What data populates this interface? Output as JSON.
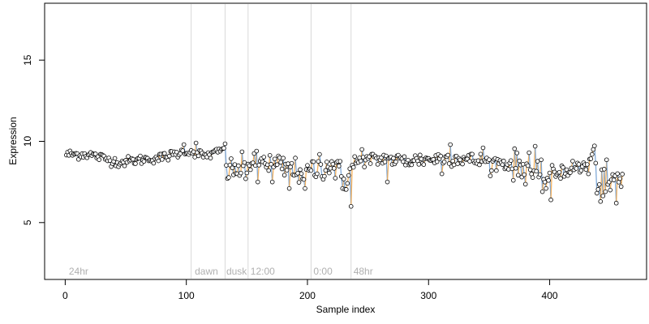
{
  "chart_data": {
    "type": "scatter",
    "title": "",
    "xlabel": "Sample index",
    "ylabel": "Expression",
    "xlim": [
      -17,
      480
    ],
    "ylim": [
      1.5,
      18.5
    ],
    "xticks": [
      0,
      100,
      200,
      300,
      400
    ],
    "yticks": [
      5,
      10,
      15
    ],
    "grid": false,
    "legend": "none",
    "colors": {
      "point_fill": "#ffffff",
      "point_edge": "#000000",
      "line_orange": "#f5a442",
      "line_blue": "#6b9bd1",
      "vline": "#d9d9d9",
      "annotation": "#b0b0b0"
    },
    "vlines": [
      104,
      132,
      151,
      203,
      236
    ],
    "annotations": [
      {
        "x": 3,
        "y": 2.0,
        "label": "24hr"
      },
      {
        "x": 107,
        "y": 2.0,
        "label": "dawn"
      },
      {
        "x": 133,
        "y": 2.0,
        "label": "dusk"
      },
      {
        "x": 153,
        "y": 2.0,
        "label": "12:00"
      },
      {
        "x": 205,
        "y": 2.0,
        "label": "0:00"
      },
      {
        "x": 238,
        "y": 2.0,
        "label": "48hr"
      }
    ],
    "anchors": [
      [
        1,
        9.2
      ],
      [
        20,
        9.2
      ],
      [
        45,
        8.7
      ],
      [
        65,
        8.9
      ],
      [
        80,
        9.0
      ],
      [
        95,
        9.3
      ],
      [
        105,
        9.4
      ],
      [
        115,
        9.1
      ],
      [
        125,
        9.3
      ],
      [
        132,
        9.6
      ],
      [
        134,
        8.2
      ],
      [
        145,
        8.3
      ],
      [
        152,
        8.7
      ],
      [
        165,
        8.8
      ],
      [
        180,
        8.3
      ],
      [
        200,
        8.1
      ],
      [
        220,
        8.6
      ],
      [
        232,
        7.6
      ],
      [
        240,
        8.7
      ],
      [
        260,
        8.9
      ],
      [
        280,
        8.8
      ],
      [
        300,
        8.9
      ],
      [
        320,
        9.0
      ],
      [
        340,
        8.8
      ],
      [
        360,
        8.7
      ],
      [
        380,
        8.4
      ],
      [
        392,
        7.6
      ],
      [
        400,
        7.9
      ],
      [
        410,
        8.2
      ],
      [
        430,
        8.5
      ],
      [
        436,
        9.1
      ],
      [
        440,
        7.4
      ],
      [
        458,
        7.6
      ]
    ],
    "outliers": [
      [
        236,
        6.0
      ],
      [
        229,
        7.1
      ],
      [
        234,
        7.9
      ],
      [
        266,
        7.5
      ],
      [
        401,
        6.4
      ],
      [
        442,
        6.3
      ],
      [
        455,
        6.2
      ],
      [
        446,
        6.9
      ],
      [
        397,
        7.1
      ],
      [
        394,
        6.9
      ],
      [
        185,
        7.1
      ],
      [
        198,
        7.1
      ],
      [
        171,
        7.5
      ],
      [
        149,
        7.7
      ],
      [
        159,
        7.5
      ],
      [
        108,
        9.9
      ],
      [
        98,
        9.8
      ],
      [
        318,
        9.8
      ],
      [
        345,
        9.6
      ],
      [
        388,
        9.7
      ],
      [
        436,
        9.5
      ],
      [
        311,
        8.0
      ],
      [
        352,
        8.2
      ],
      [
        377,
        7.8
      ],
      [
        413,
        8.0
      ],
      [
        425,
        8.1
      ],
      [
        432,
        8.0
      ],
      [
        450,
        8.1
      ],
      [
        461,
        8.6
      ],
      [
        450,
        7.0
      ],
      [
        375,
        8.8
      ],
      [
        383,
        9.3
      ],
      [
        265,
        9.1
      ],
      [
        245,
        9.5
      ],
      [
        210,
        9.2
      ],
      [
        176,
        9.1
      ],
      [
        158,
        9.4
      ],
      [
        143,
        8.5
      ]
    ],
    "n_points": 460,
    "seed": 12345
  }
}
